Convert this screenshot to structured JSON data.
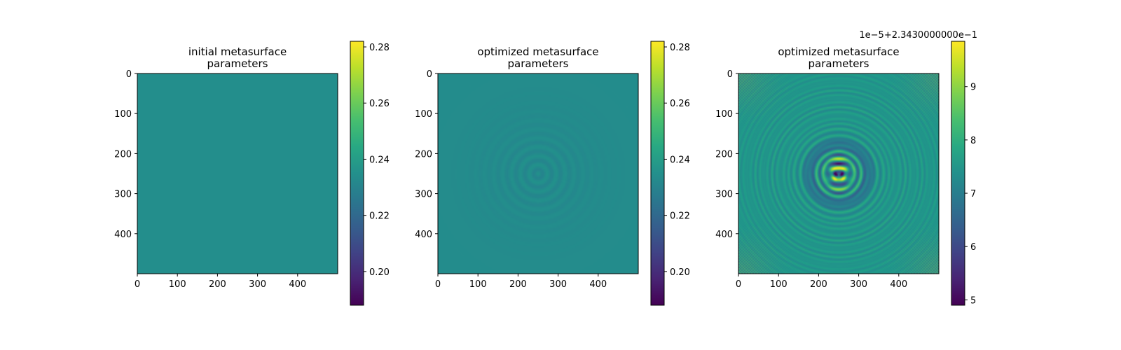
{
  "chart_data": [
    {
      "type": "heatmap",
      "title_lines": [
        "initial metasurface",
        "parameters"
      ],
      "x_ticks": [
        "0",
        "100",
        "200",
        "300",
        "400"
      ],
      "y_ticks": [
        "0",
        "100",
        "200",
        "300",
        "400"
      ],
      "x_tick_values": [
        0,
        100,
        200,
        300,
        400
      ],
      "y_tick_values": [
        0,
        100,
        200,
        300,
        400
      ],
      "grid_size": 500,
      "base_value": 0.2343,
      "colorbar": {
        "vmin": 0.188,
        "vmax": 0.282,
        "ticks": [
          "0.20",
          "0.22",
          "0.24",
          "0.26",
          "0.28"
        ],
        "tick_values": [
          0.2,
          0.22,
          0.24,
          0.26,
          0.28
        ],
        "offset_text": ""
      },
      "pattern": "uniform"
    },
    {
      "type": "heatmap",
      "title_lines": [
        "optimized metasurface",
        "parameters"
      ],
      "x_ticks": [
        "0",
        "100",
        "200",
        "300",
        "400"
      ],
      "y_ticks": [
        "0",
        "100",
        "200",
        "300",
        "400"
      ],
      "x_tick_values": [
        0,
        100,
        200,
        300,
        400
      ],
      "y_tick_values": [
        0,
        100,
        200,
        300,
        400
      ],
      "grid_size": 500,
      "base_value": 0.2343,
      "colorbar": {
        "vmin": 0.188,
        "vmax": 0.282,
        "ticks": [
          "0.20",
          "0.22",
          "0.24",
          "0.26",
          "0.28"
        ],
        "tick_values": [
          0.2,
          0.22,
          0.24,
          0.26,
          0.28
        ],
        "offset_text": ""
      },
      "pattern": "faint_central_ripples"
    },
    {
      "type": "heatmap",
      "title_lines": [
        "optimized metasurface",
        "parameters"
      ],
      "x_ticks": [
        "0",
        "100",
        "200",
        "300",
        "400"
      ],
      "y_ticks": [
        "0",
        "100",
        "200",
        "300",
        "400"
      ],
      "x_tick_values": [
        0,
        100,
        200,
        300,
        400
      ],
      "y_tick_values": [
        0,
        100,
        200,
        300,
        400
      ],
      "grid_size": 500,
      "base_value": 7.5,
      "colorbar": {
        "vmin": 4.9,
        "vmax": 9.85,
        "ticks": [
          "5",
          "6",
          "7",
          "8",
          "9"
        ],
        "tick_values": [
          5,
          6,
          7,
          8,
          9
        ],
        "offset_text": "1e−5+2.3430000000e−1"
      },
      "pattern": "strong_central_ripples"
    }
  ]
}
